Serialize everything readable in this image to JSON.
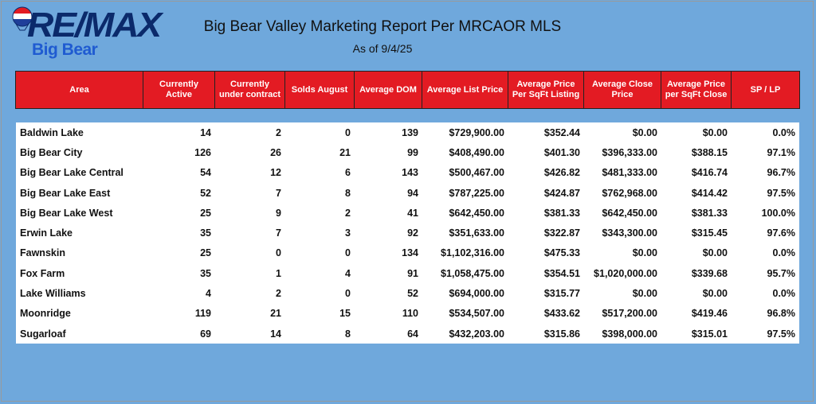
{
  "logo": {
    "wordmark": "RE/MAX",
    "sub": "Big Bear"
  },
  "report": {
    "title": "Big Bear Valley Marketing Report Per MRCAOR MLS",
    "as_of": "As of 9/4/25"
  },
  "colors": {
    "background": "#6fa8dc",
    "header_red": "#e31b23",
    "logo_navy": "#0b2a6b",
    "logo_blue": "#1f5bd1"
  },
  "columns": [
    "Area",
    "Currently Active",
    "Currently under contract",
    "Solds August",
    "Average DOM",
    "Average List Price",
    "Average Price Per SqFt Listing",
    "Average Close Price",
    "Average Price per SqFt Close",
    "SP / LP"
  ],
  "rows": [
    [
      "Baldwin Lake",
      "14",
      "2",
      "0",
      "139",
      "$729,900.00",
      "$352.44",
      "$0.00",
      "$0.00",
      "0.0%"
    ],
    [
      "Big Bear City",
      "126",
      "26",
      "21",
      "99",
      "$408,490.00",
      "$401.30",
      "$396,333.00",
      "$388.15",
      "97.1%"
    ],
    [
      "Big Bear Lake Central",
      "54",
      "12",
      "6",
      "143",
      "$500,467.00",
      "$426.82",
      "$481,333.00",
      "$416.74",
      "96.7%"
    ],
    [
      "Big Bear Lake East",
      "52",
      "7",
      "8",
      "94",
      "$787,225.00",
      "$424.87",
      "$762,968.00",
      "$414.42",
      "97.5%"
    ],
    [
      "Big Bear Lake West",
      "25",
      "9",
      "2",
      "41",
      "$642,450.00",
      "$381.33",
      "$642,450.00",
      "$381.33",
      "100.0%"
    ],
    [
      "Erwin Lake",
      "35",
      "7",
      "3",
      "92",
      "$351,633.00",
      "$322.87",
      "$343,300.00",
      "$315.45",
      "97.6%"
    ],
    [
      "Fawnskin",
      "25",
      "0",
      "0",
      "134",
      "$1,102,316.00",
      "$475.33",
      "$0.00",
      "$0.00",
      "0.0%"
    ],
    [
      "Fox Farm",
      "35",
      "1",
      "4",
      "91",
      "$1,058,475.00",
      "$354.51",
      "$1,020,000.00",
      "$339.68",
      "95.7%"
    ],
    [
      "Lake Williams",
      "4",
      "2",
      "0",
      "52",
      "$694,000.00",
      "$315.77",
      "$0.00",
      "$0.00",
      "0.0%"
    ],
    [
      "Moonridge",
      "119",
      "21",
      "15",
      "110",
      "$534,507.00",
      "$433.62",
      "$517,200.00",
      "$419.46",
      "96.8%"
    ],
    [
      "Sugarloaf",
      "69",
      "14",
      "8",
      "64",
      "$432,203.00",
      "$315.86",
      "$398,000.00",
      "$315.01",
      "97.5%"
    ]
  ]
}
